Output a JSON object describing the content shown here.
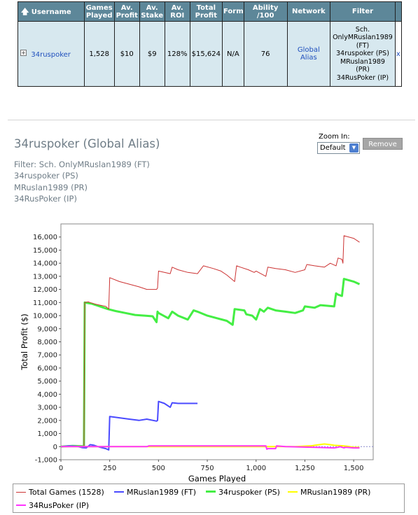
{
  "table": {
    "headers": {
      "username": "Username",
      "games_played": "Games Played",
      "av_profit": "Av. Profit",
      "av_stake": "Av. Stake",
      "av_roi": "Av. ROI",
      "total_profit": "Total Profit",
      "form": "Form",
      "ability": "Ability /100",
      "network": "Network",
      "filter": "Filter"
    },
    "row": {
      "expander": "+",
      "username": "34ruspoker",
      "games_played": "1,528",
      "av_profit": "$10",
      "av_stake": "$9",
      "av_roi": "128%",
      "total_profit": "$15,624",
      "form": "N/A",
      "ability": "76",
      "network": "Global Alias",
      "filter_lines": [
        "Sch.",
        "OnlyMRuslan1989",
        "(FT)",
        "34ruspoker (PS)",
        "MRuslan1989",
        "(PR)",
        "34RusPoker (IP)"
      ],
      "remove_x": "x"
    }
  },
  "chart_header": {
    "title": "34ruspoker (Global Alias)",
    "filter_lines": [
      "Filter: Sch. OnlyMRuslan1989 (FT)",
      "34ruspoker (PS)",
      "MRuslan1989 (PR)",
      "34RusPoker (IP)"
    ],
    "zoom_label": "Zoom In:",
    "zoom_value": "Default",
    "remove_button": "Remove"
  },
  "chart_data": {
    "type": "line",
    "xlabel": "Games Played",
    "ylabel": "Total Profit ($)",
    "xlim": [
      0,
      1600
    ],
    "ylim": [
      -1000,
      17000
    ],
    "x_ticks": [
      0,
      250,
      500,
      750,
      1000,
      1250,
      1500
    ],
    "x_tick_labels": [
      "0",
      "250",
      "500",
      "750",
      "1,000",
      "1,250",
      "1,500"
    ],
    "y_ticks": [
      -1000,
      0,
      1000,
      2000,
      3000,
      4000,
      5000,
      6000,
      7000,
      8000,
      9000,
      10000,
      11000,
      12000,
      13000,
      14000,
      15000,
      16000
    ],
    "y_tick_labels": [
      "-1,000",
      "0",
      "1,000",
      "2,000",
      "3,000",
      "4,000",
      "5,000",
      "6,000",
      "7,000",
      "8,000",
      "9,000",
      "10,000",
      "11,000",
      "12,000",
      "13,000",
      "14,000",
      "15,000",
      "16,000"
    ],
    "zero_line": true,
    "legend_position": "bottom",
    "series": [
      {
        "name": "Total Games (1528)",
        "color": "#cc3333",
        "width": 1,
        "x": [
          0,
          60,
          115,
          118,
          122,
          140,
          170,
          200,
          230,
          245,
          250,
          300,
          350,
          400,
          440,
          490,
          495,
          500,
          560,
          570,
          600,
          650,
          700,
          730,
          780,
          820,
          850,
          890,
          900,
          920,
          960,
          990,
          1000,
          1050,
          1060,
          1100,
          1150,
          1200,
          1250,
          1260,
          1300,
          1350,
          1380,
          1410,
          1420,
          1440,
          1445,
          1450,
          1500,
          1530
        ],
        "y": [
          0,
          50,
          30,
          -50,
          11000,
          11050,
          10900,
          10800,
          10700,
          10500,
          12900,
          12600,
          12400,
          12200,
          12000,
          12000,
          12100,
          13400,
          13200,
          13700,
          13500,
          13300,
          13200,
          13800,
          13600,
          13400,
          13100,
          12600,
          13800,
          13700,
          13500,
          13300,
          13400,
          13000,
          13700,
          13600,
          13500,
          13300,
          13500,
          13900,
          13800,
          13700,
          14000,
          13800,
          14400,
          14300,
          14000,
          16100,
          15900,
          15600
        ]
      },
      {
        "name": "MRuslan1989 (FT)",
        "color": "#4a4aff",
        "width": 2,
        "x": [
          0,
          40,
          80,
          110,
          130,
          150,
          170,
          200,
          230,
          245,
          250,
          300,
          350,
          400,
          440,
          490,
          495,
          500,
          530,
          560,
          570,
          600,
          650,
          700
        ],
        "y": [
          0,
          50,
          30,
          -80,
          -100,
          150,
          100,
          -50,
          -150,
          -250,
          2300,
          2200,
          2100,
          2000,
          2100,
          1950,
          2000,
          3450,
          3300,
          3000,
          3350,
          3300,
          3300,
          3300
        ]
      },
      {
        "name": "34ruspoker (PS)",
        "color": "#44ee44",
        "width": 3,
        "x": [
          0,
          60,
          115,
          118,
          122,
          160,
          200,
          240,
          280,
          330,
          380,
          430,
          470,
          490,
          495,
          500,
          550,
          570,
          580,
          600,
          650,
          680,
          700,
          750,
          800,
          850,
          880,
          890,
          940,
          950,
          980,
          1000,
          1020,
          1040,
          1060,
          1100,
          1150,
          1200,
          1240,
          1250,
          1300,
          1330,
          1400,
          1410,
          1420,
          1440,
          1450,
          1500,
          1530
        ],
        "y": [
          0,
          50,
          30,
          -50,
          11000,
          10900,
          10700,
          10500,
          10350,
          10200,
          10050,
          10000,
          9950,
          9500,
          10300,
          10200,
          9800,
          10300,
          10200,
          10000,
          9700,
          10400,
          10300,
          10000,
          9800,
          9600,
          9300,
          10500,
          10400,
          10100,
          10000,
          9700,
          10500,
          10300,
          10600,
          10400,
          10300,
          10200,
          10400,
          10700,
          10600,
          10800,
          10700,
          11700,
          11600,
          11500,
          12800,
          12600,
          12400
        ]
      },
      {
        "name": "MRuslan1989 (PR)",
        "color": "#ffff00",
        "width": 2,
        "x": [
          0,
          300,
          600,
          900,
          1200,
          1280,
          1300,
          1350,
          1380,
          1400,
          1450,
          1480,
          1500,
          1530
        ],
        "y": [
          0,
          0,
          0,
          0,
          0,
          50,
          100,
          200,
          150,
          100,
          50,
          0,
          -50,
          -50
        ]
      },
      {
        "name": "34RusPoker (IP)",
        "color": "#ff33ff",
        "width": 2,
        "x": [
          0,
          440,
          450,
          600,
          800,
          1000,
          1050,
          1055,
          1060,
          1100,
          1105,
          1150,
          1300,
          1400,
          1420,
          1430,
          1450,
          1460,
          1500,
          1530
        ],
        "y": [
          0,
          0,
          50,
          50,
          50,
          50,
          50,
          -200,
          -150,
          -150,
          50,
          0,
          -50,
          -100,
          -50,
          0,
          -100,
          -50,
          -100,
          -100
        ]
      }
    ]
  }
}
